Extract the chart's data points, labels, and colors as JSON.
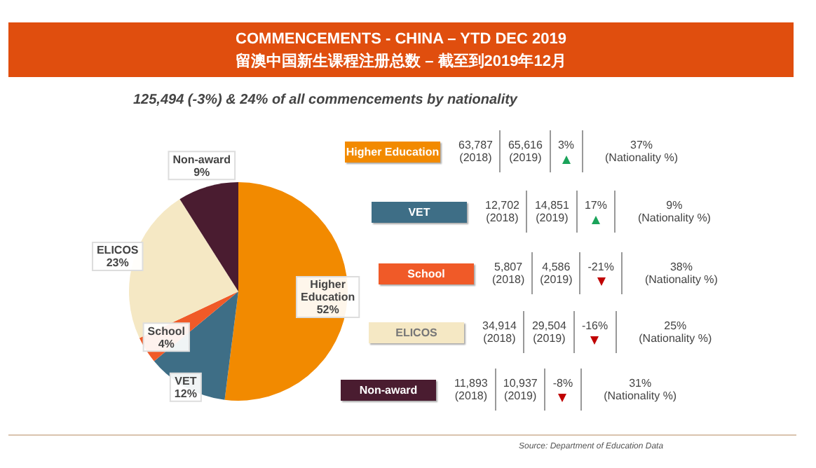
{
  "chart_data": {
    "type": "pie",
    "title": "COMMENCEMENTS - CHINA – YTD DEC 2019",
    "subtitle": "留澳中国新生课程注册总数 – 截至到2019年12月",
    "categories": [
      "Higher Education",
      "VET",
      "School",
      "ELICOS",
      "Non-award"
    ],
    "values": [
      52,
      12,
      4,
      23,
      9
    ],
    "value_labels": [
      "52%",
      "12%",
      "4%",
      "23%",
      "9%"
    ],
    "colors": [
      "#f28a00",
      "#3e6e86",
      "#f05a28",
      "#f5e8c4",
      "#4a1c30"
    ],
    "legend": false,
    "annotations": [
      "125,494 (-3%) & 24% of all commencements  by nationality",
      "63,787",
      "(2018)",
      "65,616",
      "(2019)",
      "3%",
      "37%",
      "(Nationality %)",
      "12,702",
      "(2018)",
      "14,851",
      "(2019)",
      "17%",
      "9%",
      "(Nationality %)",
      "5,807",
      "(2018)",
      "4,586",
      "(2019)",
      "-21%",
      "38%",
      "(Nationality %)",
      "34,914",
      "(2018)",
      "29,504",
      "(2019)",
      "-16%",
      "25%",
      "(Nationality %)",
      "11,893",
      "(2018)",
      "10,937",
      "(2019)",
      "-8%",
      "31%",
      "(Nationality %)",
      "Source: Department of Education Data"
    ]
  }
}
